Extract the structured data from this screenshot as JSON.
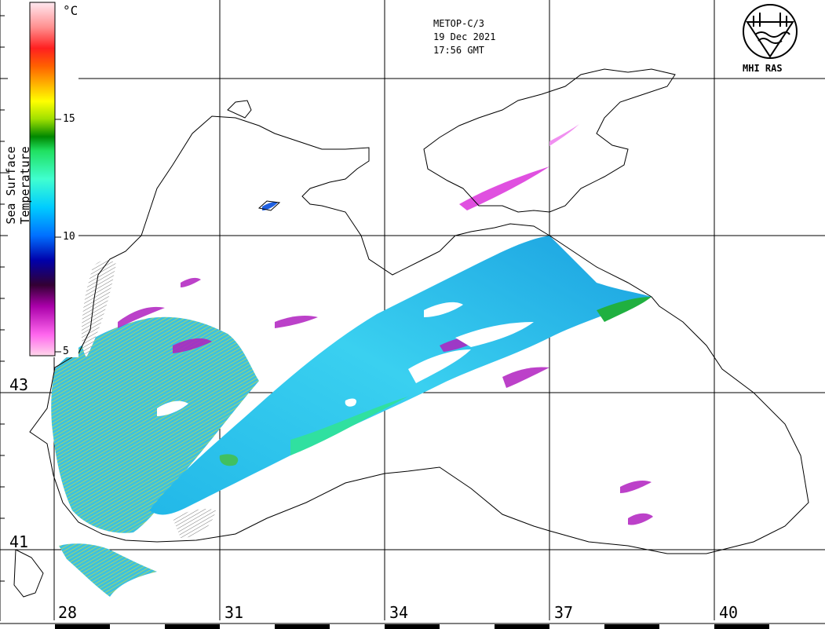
{
  "header": {
    "satellite": "METOP-C/3",
    "date": "19 Dec 2021",
    "time": "17:56 GMT"
  },
  "logo": {
    "text": "MHI RAS",
    "icon": "mhi-ras-emblem-icon"
  },
  "colorbar": {
    "title": "Sea Surface Temperature",
    "unit": "°C",
    "ticks": [
      "15",
      "10",
      "5"
    ],
    "colors": [
      "#ffd6ea",
      "#ff66ee",
      "#aa00aa",
      "#330033",
      "#0000aa",
      "#0070ff",
      "#00ccff",
      "#40ffd0",
      "#20e060",
      "#008800",
      "#a0e000",
      "#ffff00",
      "#ffb000",
      "#ff6000",
      "#ff2020",
      "#ff9090",
      "#ffe8f0"
    ]
  },
  "axes": {
    "latitude_labels": [
      "43",
      "41"
    ],
    "longitude_labels": [
      "28",
      "31",
      "34",
      "37",
      "40"
    ]
  }
}
